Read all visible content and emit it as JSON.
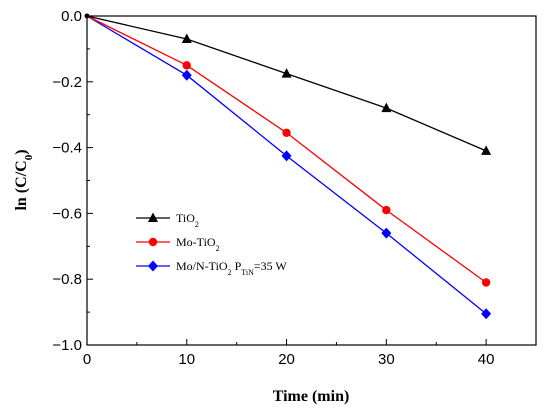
{
  "chart_data": {
    "type": "line",
    "xlabel": "Time (min)",
    "ylabel": {
      "main": "ln (C/C",
      "sub": "0",
      "tail": ")"
    },
    "xlim": [
      0,
      45
    ],
    "ylim": [
      -1.0,
      0.0
    ],
    "xticks": [
      0,
      10,
      20,
      30,
      40
    ],
    "yticks": [
      0.0,
      -0.2,
      -0.4,
      -0.6,
      -0.8,
      -1.0
    ],
    "ytick_labels": [
      "0.0",
      "−0.2",
      "−0.4",
      "−0.6",
      "−0.8",
      "−1.0"
    ],
    "legend_position": "center-left",
    "grid": false,
    "x": [
      0,
      10,
      20,
      30,
      40
    ],
    "series": [
      {
        "name": "TiO2",
        "label_parts": [
          {
            "t": "TiO"
          },
          {
            "t": "2",
            "sub": true
          }
        ],
        "color": "#000000",
        "marker": "triangle",
        "values": [
          0.0,
          -0.07,
          -0.175,
          -0.28,
          -0.41
        ]
      },
      {
        "name": "Mo-TiO2",
        "label_parts": [
          {
            "t": "Mo-TiO"
          },
          {
            "t": "2",
            "sub": true
          }
        ],
        "color": "#ff0000",
        "marker": "circle",
        "values": [
          0.0,
          -0.15,
          -0.355,
          -0.59,
          -0.81
        ]
      },
      {
        "name": "Mo/N-TiO2 PTiN=35 W",
        "label_parts": [
          {
            "t": "Mo/N-TiO"
          },
          {
            "t": "2",
            "sub": true
          },
          {
            "t": " P"
          },
          {
            "t": "TiN",
            "sub": true
          },
          {
            "t": "=35 W"
          }
        ],
        "color": "#0000ff",
        "marker": "diamond",
        "values": [
          0.0,
          -0.18,
          -0.425,
          -0.66,
          -0.905
        ]
      }
    ]
  }
}
